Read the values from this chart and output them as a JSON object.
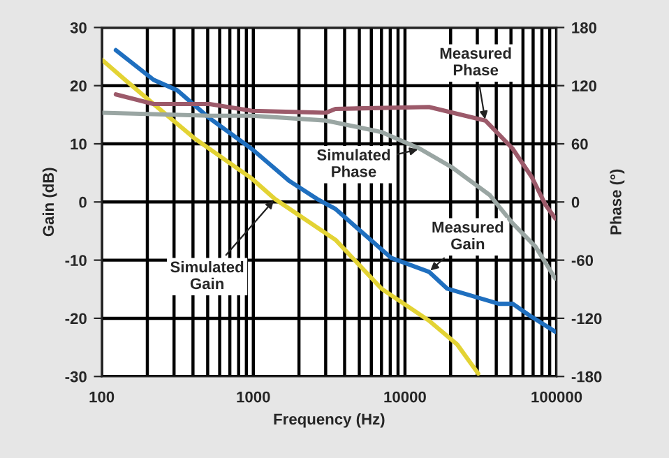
{
  "chart_data": {
    "type": "line",
    "xlabel": "Frequency (Hz)",
    "ylabel": "Gain (dB)",
    "y2label": "Phase (°)",
    "log": "x",
    "grid": true,
    "line_style": "solid",
    "marker": "none",
    "xlim": [
      100,
      100000
    ],
    "ylim": [
      -30,
      30
    ],
    "y2lim": [
      -180,
      180
    ],
    "xticks": [
      100,
      {
        "value": 200,
        "label": null
      },
      {
        "value": 300,
        "label": null
      },
      {
        "value": 400,
        "label": null
      },
      {
        "value": 500,
        "label": null
      },
      {
        "value": 600,
        "label": null
      },
      {
        "value": 700,
        "label": null
      },
      {
        "value": 800,
        "label": null
      },
      {
        "value": 900,
        "label": null
      },
      1000,
      {
        "value": 2000,
        "label": null
      },
      {
        "value": 3000,
        "label": null
      },
      {
        "value": 4000,
        "label": null
      },
      {
        "value": 5000,
        "label": null
      },
      {
        "value": 6000,
        "label": null
      },
      {
        "value": 7000,
        "label": null
      },
      {
        "value": 8000,
        "label": null
      },
      {
        "value": 9000,
        "label": null
      },
      10000,
      {
        "value": 20000,
        "label": null
      },
      {
        "value": 30000,
        "label": null
      },
      {
        "value": 40000,
        "label": null
      },
      {
        "value": 50000,
        "label": null
      },
      {
        "value": 60000,
        "label": null
      },
      {
        "value": 70000,
        "label": null
      },
      {
        "value": 80000,
        "label": null
      },
      {
        "value": 90000,
        "label": null
      },
      100000
    ],
    "yticks": [
      -30,
      -20,
      -10,
      0,
      10,
      20,
      30
    ],
    "y2ticks": [
      -180,
      -120,
      -60,
      0,
      60,
      120,
      180
    ],
    "series": [
      {
        "color": "#1f6fbf",
        "x": [
          124,
          220,
          315,
          514,
          980,
          1730,
          2640,
          3480,
          8100,
          14400,
          19000,
          41600,
          51300,
          68000,
          98000
        ],
        "values": [
          26.1,
          21,
          19.2,
          14.4,
          9.1,
          3.6,
          0.5,
          -1.2,
          -9.6,
          -12,
          -14.9,
          -17.5,
          -17.5,
          -19.7,
          -22.3
        ]
      },
      {
        "color": "#e3d334",
        "x": [
          100,
          144,
          221,
          416,
          970,
          1390,
          3480,
          7000,
          14400,
          22100,
          30400
        ],
        "values": [
          24.5,
          20.9,
          16.8,
          10.8,
          4.1,
          0.5,
          -6.5,
          -14.9,
          -20.4,
          -24.5,
          -29.5
        ]
      },
      {
        "color": "#9c5a6a",
        "axis": "y2",
        "x": [
          124,
          220,
          514,
          980,
          3000,
          3480,
          14400,
          22100,
          33900,
          51300,
          68400,
          84500,
          98000
        ],
        "values": [
          111,
          101,
          101,
          94,
          92,
          96,
          98,
          91,
          84,
          55,
          26,
          -3,
          -17
        ]
      },
      {
        "color": "#9aa6a3",
        "axis": "y2",
        "x": [
          100,
          514,
          980,
          3000,
          3480,
          7020,
          12500,
          20300,
          36300,
          51300,
          72500,
          98000
        ],
        "values": [
          92,
          89,
          89,
          84,
          82,
          72,
          55,
          36,
          7,
          -22,
          -46,
          -79
        ]
      }
    ],
    "annotations": [
      {
        "text": "Measured\nPhase",
        "x": 33900,
        "y": 13.9
      },
      {
        "text": "Simulated\nPhase",
        "x": 12500,
        "y": 9.1
      },
      {
        "text": "Simulated\nGain",
        "x": 1390,
        "y": 0.5
      },
      {
        "text": "Measured\nGain",
        "x": 14400,
        "y": -12
      }
    ]
  }
}
